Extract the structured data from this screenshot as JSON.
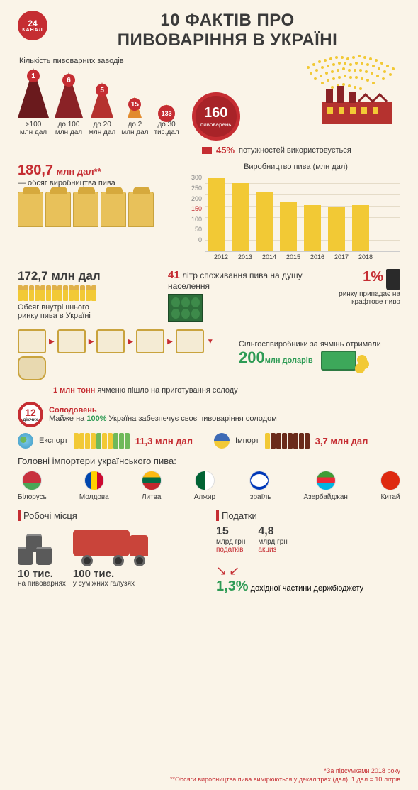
{
  "header": {
    "logo_main": "24",
    "logo_sub": "КАНАЛ",
    "title_l1": "10 ФАКТІВ ПРО",
    "title_l2": "ПИВОВАРІННЯ В УКРАЇНІ"
  },
  "breweries": {
    "section_label": "Кількість пивоварних заводів",
    "triangles": [
      {
        "count": "1",
        "caption": ">100\nмлн дал",
        "height": 70,
        "color": "#6a1a1d"
      },
      {
        "count": "6",
        "caption": "до 100\nмлн дал",
        "height": 64,
        "color": "#8a2226"
      },
      {
        "count": "5",
        "caption": "до 20\nмлн дал",
        "height": 50,
        "color": "#b5322f"
      },
      {
        "count": "15",
        "caption": "до 2\nмлн дал",
        "height": 30,
        "color": "#e28b2e"
      },
      {
        "count": "133",
        "caption": "до 30\nтис.дал",
        "height": 20,
        "color": "#f2c935"
      }
    ],
    "total": "160",
    "total_sub": "пивоварень",
    "capacity_pct": "45%",
    "capacity_text": "потужностей використовується"
  },
  "production": {
    "volume_value": "180,7",
    "volume_unit": "млн дал**",
    "volume_caption": "— обсяг виробництва пива",
    "chart": {
      "title": "Виробництво пива (млн дал)",
      "type": "bar",
      "ylim": [
        0,
        300
      ],
      "yticks": [
        300,
        250,
        200,
        150,
        100,
        50,
        0
      ],
      "highlight_tick": 150,
      "years": [
        "2012",
        "2013",
        "2014",
        "2015",
        "2016",
        "2017",
        "2018"
      ],
      "values": [
        285,
        265,
        230,
        190,
        180,
        175,
        180
      ],
      "bar_color": "#f2c935",
      "grid_color": "#e5dcc8",
      "background_color": "#faf4e8",
      "label_fontsize": 9
    }
  },
  "domestic": {
    "value": "172,7 млн дал",
    "caption": "Обсяг внутрішнього\nринку пива в Україні",
    "bottle_count": 14
  },
  "per_capita": {
    "value": "41",
    "text": "літр споживання пива на душу населення"
  },
  "craft": {
    "pct": "1%",
    "text": "ринку припадає на крафтове пиво"
  },
  "barley": {
    "process_caption_val": "1 млн тонн",
    "process_caption_txt": "ячменю пішло на приготування солоду",
    "farmers_text": "Сільгоспвиробники за ячмінь отримали",
    "farmers_value": "200",
    "farmers_unit": "млн доларів"
  },
  "malt": {
    "count": "12",
    "count_sub": "діючих",
    "title": "Солодовень",
    "text_pre": "Майже на",
    "pct": "100%",
    "text_post": "Україна забезпечує своє пивоваріння солодом"
  },
  "trade": {
    "export_label": "Експорт",
    "export_value": "11,3 млн дал",
    "export_bottle_colors": [
      "#f2c935",
      "#f2c935",
      "#f2c935",
      "#f2c935",
      "#6fb95a",
      "#f2c935",
      "#f2c935",
      "#6fb95a",
      "#6fb95a",
      "#6fb95a"
    ],
    "import_label": "Імпорт",
    "import_value": "3,7 млн дал",
    "import_bottle_colors": [
      "#f2c935",
      "#6a2a1a",
      "#6a2a1a",
      "#6a2a1a",
      "#6a2a1a",
      "#6a2a1a",
      "#6a2a1a",
      "#6a2a1a"
    ]
  },
  "importers": {
    "heading": "Головні імпортери українського пива:",
    "list": [
      {
        "name": "Білорусь",
        "flag_css": "background:linear-gradient(#c8313e 0 66%,#4aa657 66%);"
      },
      {
        "name": "Молдова",
        "flag_css": "background:linear-gradient(90deg,#0046ae 0 33%,#ffd200 33% 66%,#cc092f 66%);"
      },
      {
        "name": "Литва",
        "flag_css": "background:linear-gradient(#fdb913 0 33%,#006a44 33% 66%,#c1272d 66%);"
      },
      {
        "name": "Алжир",
        "flag_css": "background:linear-gradient(90deg,#006233 0 50%,#fff 50%);"
      },
      {
        "name": "Ізраїль",
        "flag_css": "background:#fff;box-shadow:inset 0 4px 0 #0038b8, inset 0 -4px 0 #0038b8;"
      },
      {
        "name": "Азербайджан",
        "flag_css": "background:linear-gradient(#3f9c35 0 33%,#ed2939 33% 66%,#00b5e2 66%);"
      },
      {
        "name": "Китай",
        "flag_css": "background:#de2910;"
      }
    ]
  },
  "jobs": {
    "heading": "Робочі місця",
    "brew_val": "10 тис.",
    "brew_txt": "на пивоварнях",
    "rel_val": "100 тис.",
    "rel_txt": "у суміжних галузях"
  },
  "taxes": {
    "heading": "Податки",
    "tax_val": "15",
    "tax_unit": "млрд грн",
    "tax_lbl": "податків",
    "excise_val": "4,8",
    "excise_unit": "млрд грн",
    "excise_lbl": "акциз",
    "budget_pct": "1,3%",
    "budget_txt": "дохідної частини держбюджету"
  },
  "footnotes": {
    "f1": "*За підсумками 2018 року",
    "f2": "**Обсяги виробництва пива вимірюються у декалітрах (дал), 1 дал = 10 літрів"
  },
  "colors": {
    "red": "#c52d32",
    "green": "#2e9b55",
    "yellow": "#f2c935",
    "bg": "#faf4e8",
    "text": "#3a3a3a"
  }
}
